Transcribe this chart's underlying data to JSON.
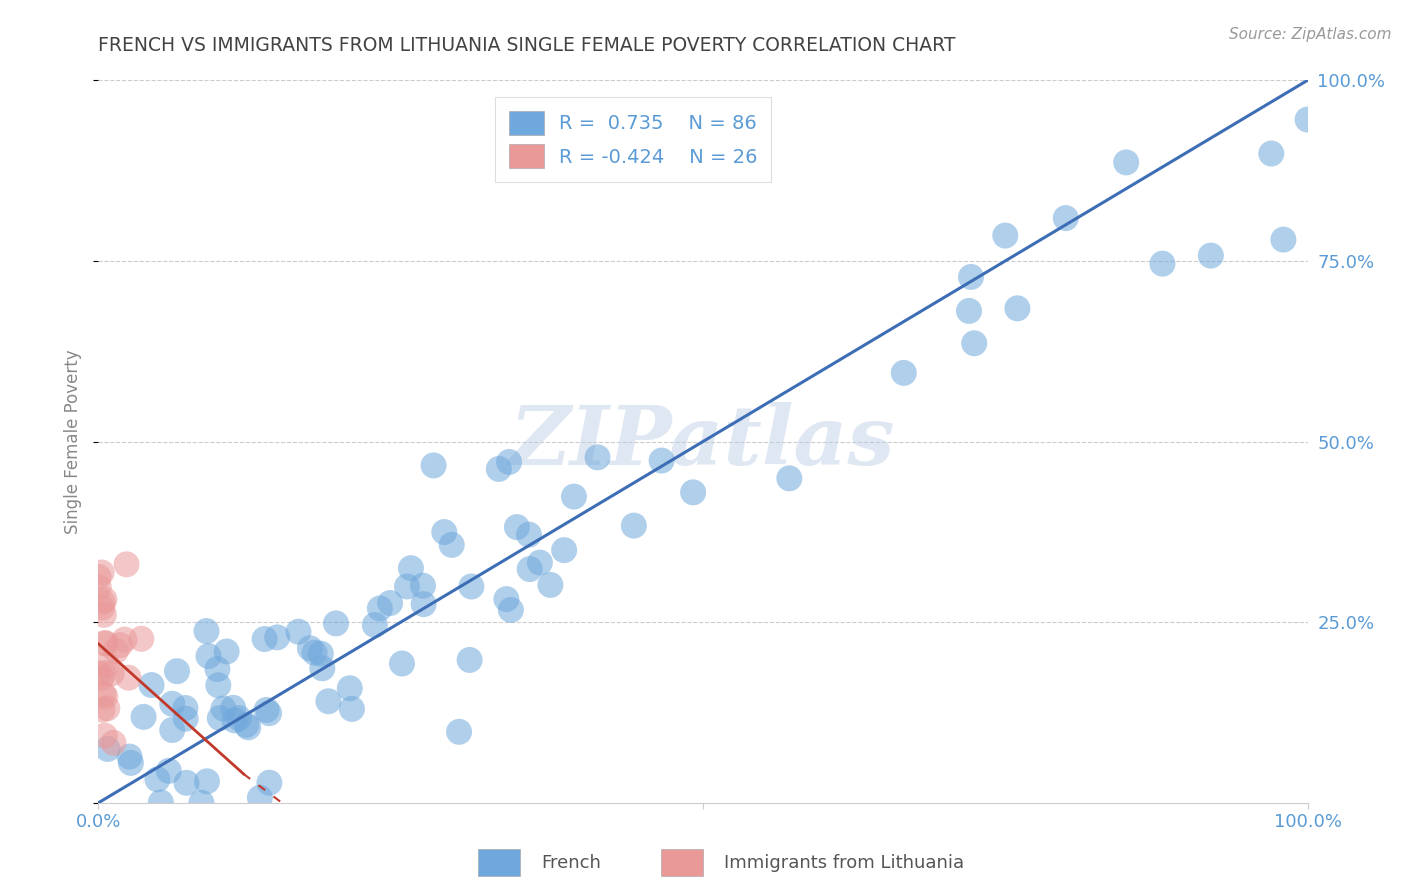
{
  "title": "FRENCH VS IMMIGRANTS FROM LITHUANIA SINGLE FEMALE POVERTY CORRELATION CHART",
  "source": "Source: ZipAtlas.com",
  "ylabel": "Single Female Poverty",
  "watermark": "ZIPatlas",
  "legend_R_blue": "0.735",
  "legend_N_blue": "86",
  "legend_R_pink": "-0.424",
  "legend_N_pink": "26",
  "blue_color": "#6fa8dc",
  "pink_color": "#ea9999",
  "line_blue": "#3d6eb5",
  "line_pink": "#c0392b",
  "title_color": "#434343",
  "source_color": "#999999",
  "axis_label_color": "#888888",
  "tick_color": "#5b9bd5",
  "grid_color": "#cccccc",
  "legend_label_color": "#5b9bd5"
}
